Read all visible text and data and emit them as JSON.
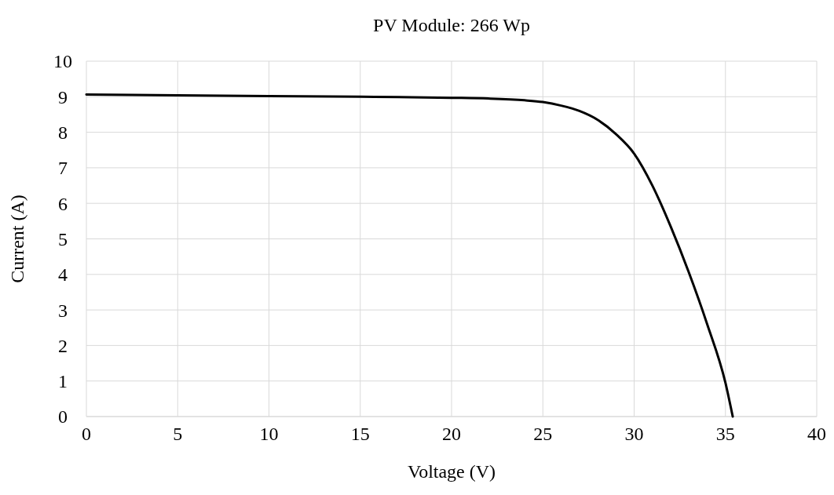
{
  "chart_data": {
    "type": "line",
    "title": "PV Module: 266 Wp",
    "xlabel": "Voltage (V)",
    "ylabel": "Current (A)",
    "x": [
      0,
      5,
      10,
      15,
      20,
      22,
      24,
      25,
      26,
      27,
      28,
      29,
      30,
      31,
      32,
      33,
      34,
      35,
      35.4
    ],
    "series": [
      {
        "color": "#000000",
        "values": [
          9.06,
          9.04,
          9.02,
          9.0,
          8.97,
          8.95,
          8.9,
          8.85,
          8.75,
          8.6,
          8.35,
          7.95,
          7.4,
          6.5,
          5.35,
          4.05,
          2.6,
          0.95,
          0
        ]
      }
    ],
    "xlim": [
      0,
      40
    ],
    "xticks": [
      0,
      5,
      10,
      15,
      20,
      25,
      30,
      35,
      40
    ],
    "ylim": [
      0,
      10
    ],
    "yticks": [
      0,
      1,
      2,
      3,
      4,
      5,
      6,
      7,
      8,
      9,
      10
    ],
    "grid": true,
    "marker": "none",
    "line_style": "solid"
  }
}
